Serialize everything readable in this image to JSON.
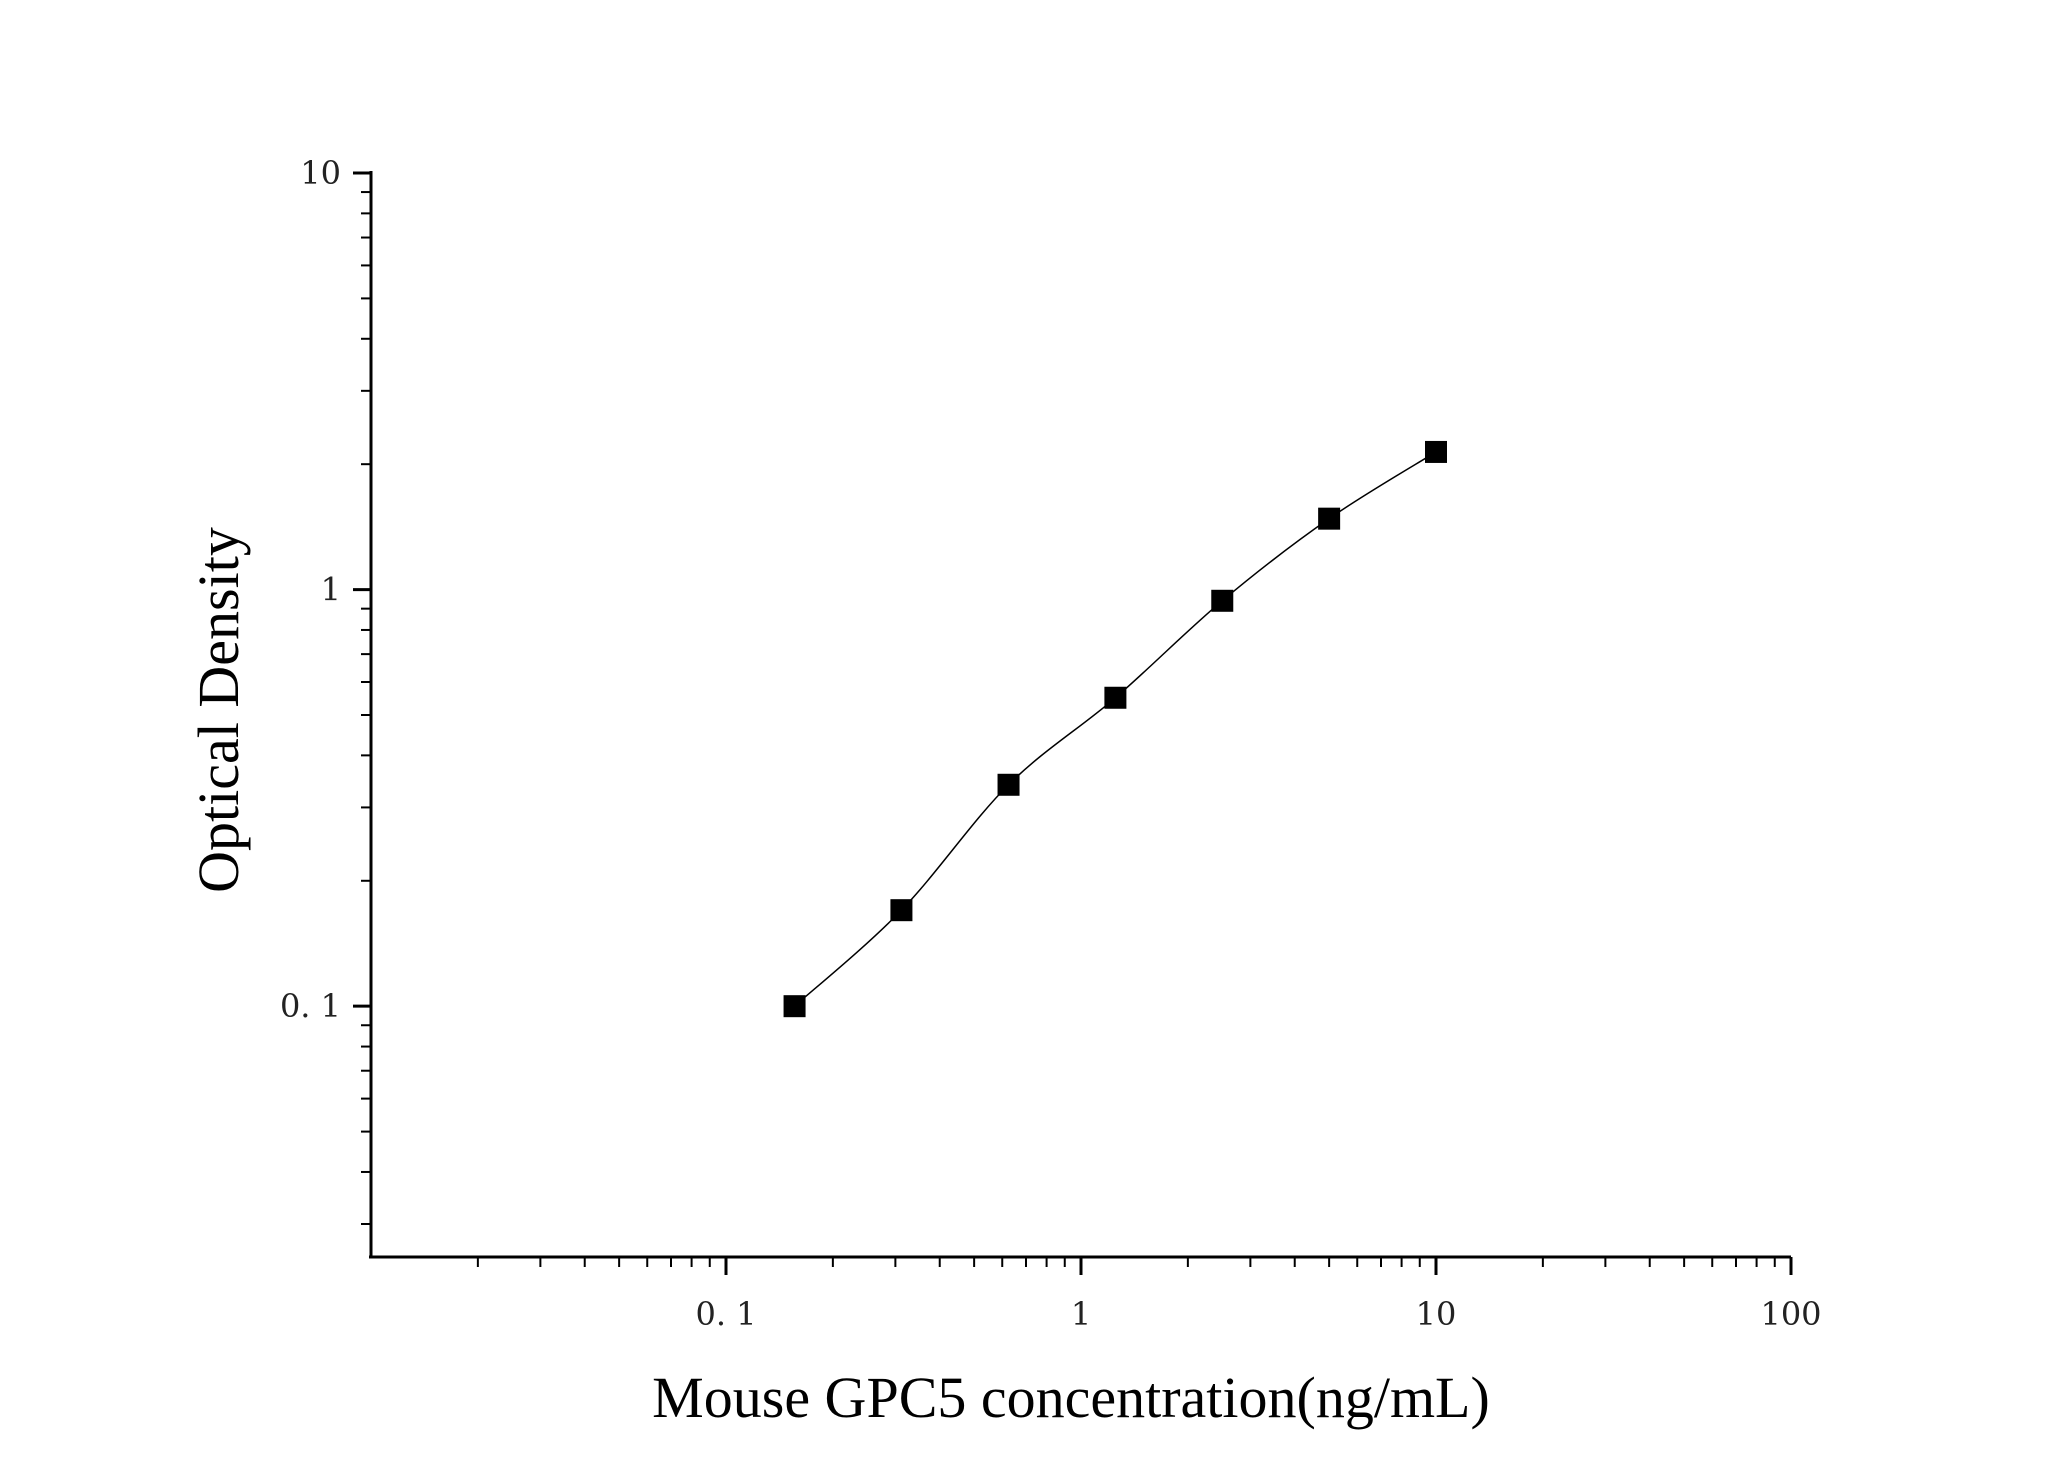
{
  "chart_data": {
    "type": "scatter",
    "xlabel": "Mouse GPC5 concentration(ng/mL)",
    "ylabel": "Optical Density",
    "x_scale": "log",
    "y_scale": "log",
    "xlim": [
      0.01,
      100
    ],
    "ylim": [
      0.025,
      10
    ],
    "x_ticks": [
      {
        "value": 0.1,
        "label": "0. 1"
      },
      {
        "value": 1,
        "label": "1"
      },
      {
        "value": 10,
        "label": "10"
      },
      {
        "value": 100,
        "label": "100"
      }
    ],
    "y_ticks": [
      {
        "value": 0.1,
        "label": "0. 1"
      },
      {
        "value": 1,
        "label": "1"
      },
      {
        "value": 10,
        "label": "10"
      }
    ],
    "grid": false,
    "series": [
      {
        "x": [
          0.156,
          0.312,
          0.625,
          1.25,
          2.5,
          5,
          10
        ],
        "y": [
          0.1,
          0.17,
          0.34,
          0.55,
          0.94,
          1.48,
          2.14
        ],
        "marker": "square",
        "color": "#000000",
        "fit_line": true
      }
    ]
  }
}
